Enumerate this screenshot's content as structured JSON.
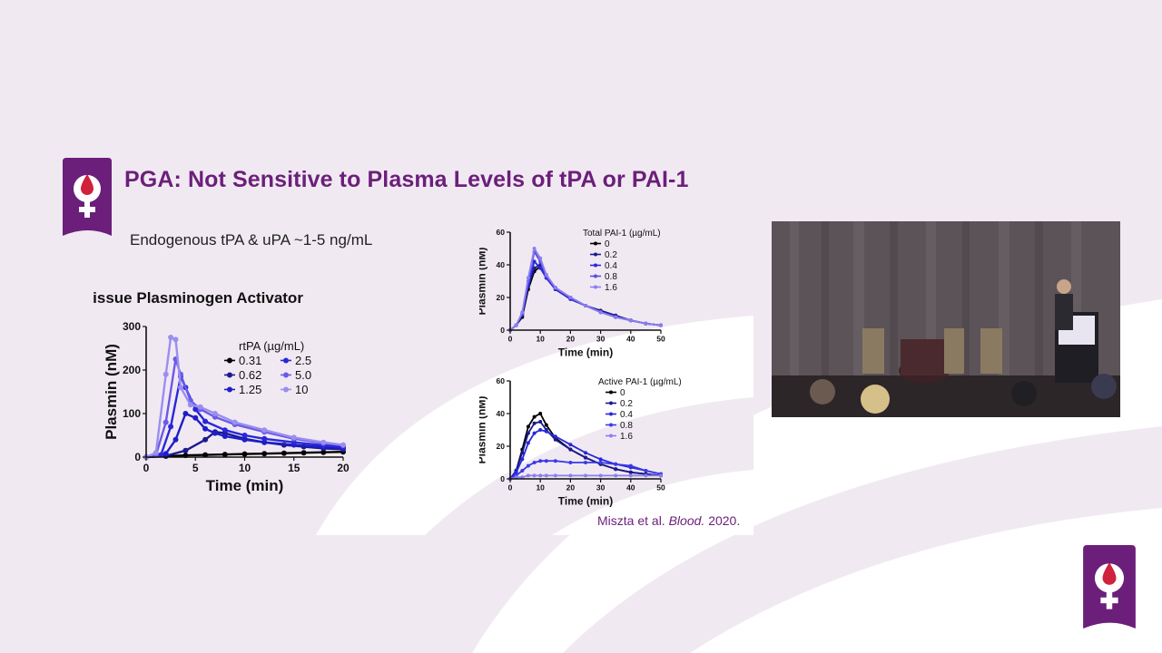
{
  "slide": {
    "title": "PGA: Not Sensitive to Plasma Levels of tPA or PAI-1",
    "subtitle": "Endogenous tPA & uPA ~1-5 ng/mL",
    "citation_authors": "Miszta et al.",
    "citation_journal": "Blood.",
    "citation_year": "2020."
  },
  "colors": {
    "accent": "#6b1f7a",
    "logo_red": "#d0213d",
    "background": "#f1e9f2",
    "series_dark": "#000000",
    "series_navy": "#1a1a8c",
    "series_blue": "#2828d8",
    "series_mid": "#6a5ae8",
    "series_light": "#9a8ef0"
  },
  "icons": {
    "logo": "venus-blood-drop-logo"
  },
  "chart_data": [
    {
      "type": "line",
      "title": "Tissue Plasminogen Activator",
      "xlabel": "Time (min)",
      "ylabel": "Plasmin (nM)",
      "xlim": [
        0,
        20
      ],
      "ylim": [
        0,
        300
      ],
      "xticks": [
        0,
        5,
        10,
        15,
        20
      ],
      "yticks": [
        0,
        100,
        200,
        300
      ],
      "legend_title": "rtPA (µg/mL)",
      "legend_position": "right",
      "series": [
        {
          "name": "0.31",
          "color": "#000000",
          "x": [
            0,
            2,
            4,
            6,
            8,
            10,
            12,
            14,
            16,
            18,
            20
          ],
          "y": [
            0,
            2,
            4,
            5,
            6,
            7,
            8,
            9,
            10,
            11,
            12
          ]
        },
        {
          "name": "0.62",
          "color": "#1a1a8c",
          "x": [
            0,
            2,
            4,
            6,
            7,
            8,
            10,
            12,
            14,
            16,
            18,
            20
          ],
          "y": [
            0,
            3,
            15,
            40,
            58,
            55,
            42,
            34,
            28,
            24,
            20,
            18
          ]
        },
        {
          "name": "1.25",
          "color": "#1e1ec8",
          "x": [
            0,
            2,
            3,
            4,
            5,
            6,
            7,
            8,
            10,
            12,
            15,
            18,
            20
          ],
          "y": [
            0,
            8,
            40,
            100,
            90,
            65,
            55,
            48,
            40,
            34,
            28,
            23,
            20
          ]
        },
        {
          "name": "2.5",
          "color": "#2828d8",
          "x": [
            0,
            1.5,
            2.5,
            3.5,
            4,
            5,
            6,
            8,
            10,
            12,
            15,
            18,
            20
          ],
          "y": [
            0,
            5,
            70,
            185,
            160,
            110,
            82,
            62,
            50,
            42,
            34,
            27,
            23
          ]
        },
        {
          "name": "5.0",
          "color": "#6a5ae8",
          "x": [
            0,
            1,
            2,
            3,
            3.5,
            4.5,
            5.5,
            7,
            9,
            12,
            15,
            18,
            20
          ],
          "y": [
            0,
            5,
            80,
            225,
            190,
            130,
            110,
            92,
            75,
            58,
            42,
            32,
            27
          ]
        },
        {
          "name": "10",
          "color": "#9a8ef0",
          "x": [
            0,
            1,
            2,
            2.5,
            3,
            3.5,
            4.5,
            5.5,
            7,
            9,
            12,
            15,
            18,
            20
          ],
          "y": [
            0,
            10,
            190,
            275,
            270,
            160,
            120,
            115,
            100,
            80,
            62,
            45,
            34,
            28
          ]
        }
      ]
    },
    {
      "type": "line",
      "title": "",
      "xlabel": "Time (min)",
      "ylabel": "Plasmin (nM)",
      "xlim": [
        0,
        50
      ],
      "ylim": [
        0,
        60
      ],
      "xticks": [
        0,
        10,
        20,
        30,
        40,
        50
      ],
      "yticks": [
        0,
        20,
        40,
        60
      ],
      "legend_title": "Total PAI-1 (µg/mL)",
      "legend_position": "top-right",
      "series": [
        {
          "name": "0",
          "color": "#000000",
          "x": [
            0,
            2,
            4,
            6,
            8,
            10,
            12,
            15,
            20,
            25,
            30,
            35,
            40,
            45,
            50
          ],
          "y": [
            0,
            3,
            8,
            25,
            36,
            39,
            32,
            25,
            19,
            15,
            11,
            8,
            6,
            4,
            3
          ]
        },
        {
          "name": "0.2",
          "color": "#1a1a8c",
          "x": [
            0,
            2,
            4,
            6,
            8,
            10,
            12,
            15,
            20,
            25,
            30,
            35,
            40,
            45,
            50
          ],
          "y": [
            0,
            3,
            9,
            27,
            38,
            40,
            33,
            26,
            20,
            15,
            12,
            9,
            6,
            4,
            3
          ]
        },
        {
          "name": "0.4",
          "color": "#2828d8",
          "x": [
            0,
            2,
            4,
            6,
            8,
            10,
            12,
            15,
            20,
            25,
            30,
            35,
            40,
            45,
            50
          ],
          "y": [
            0,
            3,
            10,
            28,
            42,
            38,
            32,
            25,
            19,
            15,
            11,
            8,
            6,
            4,
            3
          ]
        },
        {
          "name": "0.8",
          "color": "#5a4ae0",
          "x": [
            0,
            2,
            4,
            6,
            8,
            10,
            12,
            15,
            20,
            25,
            30,
            35,
            40,
            45,
            50
          ],
          "y": [
            0,
            3,
            10,
            30,
            48,
            42,
            33,
            26,
            20,
            15,
            11,
            8,
            6,
            4,
            3
          ]
        },
        {
          "name": "1.6",
          "color": "#8a7ef0",
          "x": [
            0,
            2,
            4,
            6,
            8,
            10,
            12,
            15,
            20,
            25,
            30,
            35,
            40,
            45,
            50
          ],
          "y": [
            0,
            3,
            11,
            32,
            50,
            44,
            34,
            26,
            20,
            15,
            11,
            8,
            6,
            4,
            3
          ]
        }
      ]
    },
    {
      "type": "line",
      "title": "",
      "xlabel": "Time (min)",
      "ylabel": "Plasmin (nM)",
      "xlim": [
        0,
        50
      ],
      "ylim": [
        0,
        60
      ],
      "xticks": [
        0,
        10,
        20,
        30,
        40,
        50
      ],
      "yticks": [
        0,
        20,
        40,
        60
      ],
      "legend_title": "Active PAI-1 (µg/mL)",
      "legend_position": "top-right",
      "series": [
        {
          "name": "0",
          "color": "#000000",
          "x": [
            0,
            2,
            4,
            6,
            8,
            10,
            12,
            15,
            20,
            25,
            30,
            35,
            40,
            45,
            50
          ],
          "y": [
            0,
            5,
            18,
            32,
            38,
            40,
            33,
            25,
            18,
            13,
            9,
            6,
            4,
            3,
            2
          ]
        },
        {
          "name": "0.2",
          "color": "#1a1a8c",
          "x": [
            0,
            2,
            4,
            6,
            8,
            10,
            12,
            15,
            20,
            25,
            30,
            35,
            40,
            45,
            50
          ],
          "y": [
            0,
            5,
            16,
            28,
            34,
            35,
            30,
            24,
            18,
            13,
            9,
            6,
            4,
            3,
            2
          ]
        },
        {
          "name": "0.4",
          "color": "#2828d8",
          "x": [
            0,
            2,
            4,
            6,
            8,
            10,
            12,
            15,
            20,
            25,
            30,
            35,
            40,
            45,
            50
          ],
          "y": [
            0,
            4,
            12,
            22,
            28,
            30,
            29,
            26,
            21,
            16,
            12,
            9,
            7,
            5,
            3
          ]
        },
        {
          "name": "0.8",
          "color": "#3a3ae8",
          "x": [
            0,
            2,
            4,
            6,
            8,
            10,
            12,
            15,
            20,
            25,
            30,
            35,
            40,
            45,
            50
          ],
          "y": [
            0,
            2,
            5,
            8,
            10,
            11,
            11,
            11,
            10,
            10,
            10,
            9,
            8,
            5,
            3
          ]
        },
        {
          "name": "1.6",
          "color": "#8a7ef0",
          "x": [
            0,
            2,
            4,
            6,
            8,
            10,
            12,
            15,
            20,
            25,
            30,
            35,
            40,
            45,
            50
          ],
          "y": [
            0,
            1,
            1,
            2,
            2,
            2,
            2,
            2,
            2,
            2,
            2,
            2,
            2,
            2,
            2
          ]
        }
      ]
    }
  ]
}
